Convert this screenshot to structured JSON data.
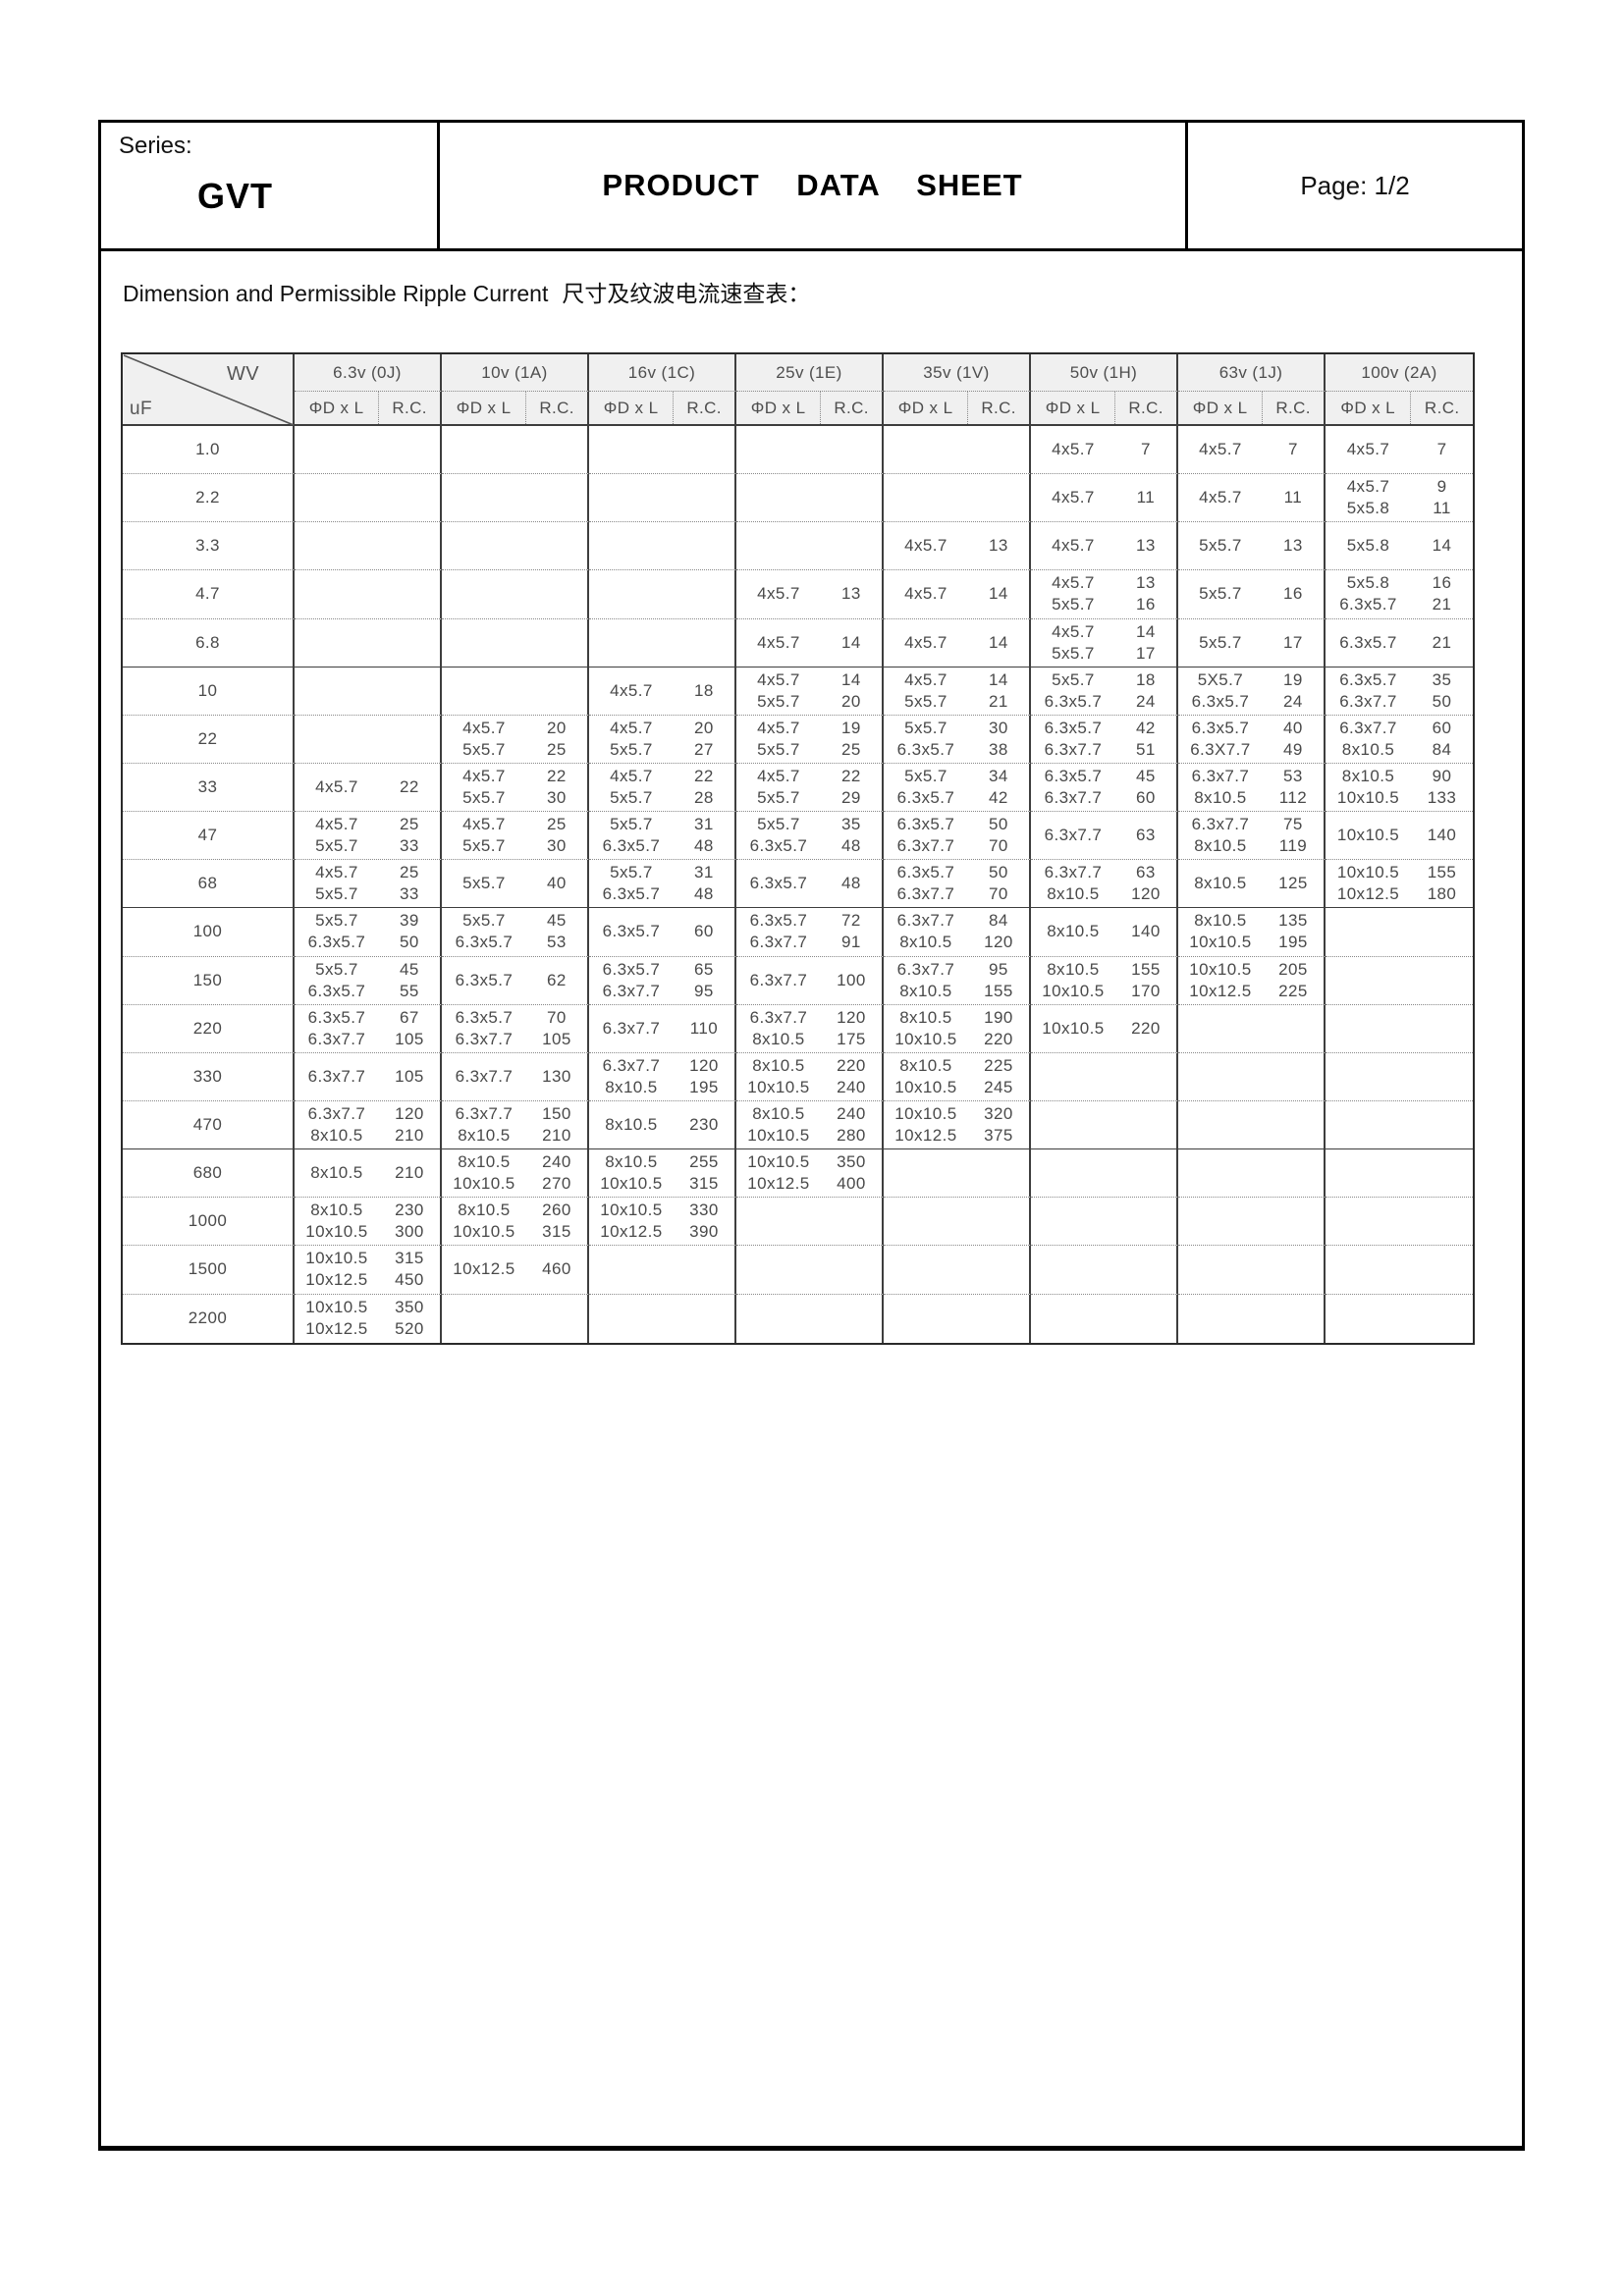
{
  "header": {
    "series_label": "Series:",
    "series_value": "GVT",
    "sheet_title": "PRODUCT DATA SHEET",
    "page_label": "Page: 1/2"
  },
  "section": {
    "title_en": "Dimension and Permissible Ripple Current",
    "title_zh": "尺寸及纹波电流速查表："
  },
  "colors": {
    "header_bg": "#f0f0f0",
    "grid_line": "#3e3e3e",
    "text": "#4a4a4a"
  },
  "table": {
    "corner": {
      "wv": "WV",
      "uf": "uF"
    },
    "sub": {
      "dim": "ΦD x L",
      "rc": "R.C."
    },
    "voltages": [
      "6.3v (0J)",
      "10v (1A)",
      "16v (1C)",
      "25v (1E)",
      "35v (1V)",
      "50v (1H)",
      "63v (1J)",
      "100v (2A)"
    ],
    "rows": [
      {
        "uf": "1.0",
        "cells": [
          [],
          [],
          [],
          [],
          [],
          [
            [
              "4x5.7",
              "7"
            ]
          ],
          [
            [
              "4x5.7",
              "7"
            ]
          ],
          [
            [
              "4x5.7",
              "7"
            ]
          ]
        ]
      },
      {
        "uf": "2.2",
        "cells": [
          [],
          [],
          [],
          [],
          [],
          [
            [
              "4x5.7",
              "11"
            ]
          ],
          [
            [
              "4x5.7",
              "11"
            ]
          ],
          [
            [
              "4x5.7",
              "9"
            ],
            [
              "5x5.8",
              "11"
            ]
          ]
        ]
      },
      {
        "uf": "3.3",
        "cells": [
          [],
          [],
          [],
          [],
          [
            [
              "4x5.7",
              "13"
            ]
          ],
          [
            [
              "4x5.7",
              "13"
            ]
          ],
          [
            [
              "5x5.7",
              "13"
            ]
          ],
          [
            [
              "5x5.8",
              "14"
            ]
          ]
        ]
      },
      {
        "uf": "4.7",
        "cells": [
          [],
          [],
          [],
          [
            [
              "4x5.7",
              "13"
            ]
          ],
          [
            [
              "4x5.7",
              "14"
            ]
          ],
          [
            [
              "4x5.7",
              "13"
            ],
            [
              "5x5.7",
              "16"
            ]
          ],
          [
            [
              "5x5.7",
              "16"
            ]
          ],
          [
            [
              "5x5.8",
              "16"
            ],
            [
              "6.3x5.7",
              "21"
            ]
          ]
        ]
      },
      {
        "uf": "6.8",
        "cells": [
          [],
          [],
          [],
          [
            [
              "4x5.7",
              "14"
            ]
          ],
          [
            [
              "4x5.7",
              "14"
            ]
          ],
          [
            [
              "4x5.7",
              "14"
            ],
            [
              "5x5.7",
              "17"
            ]
          ],
          [
            [
              "5x5.7",
              "17"
            ]
          ],
          [
            [
              "6.3x5.7",
              "21"
            ]
          ]
        ]
      },
      {
        "uf": "10",
        "cells": [
          [],
          [],
          [
            [
              "4x5.7",
              "18"
            ]
          ],
          [
            [
              "4x5.7",
              "14"
            ],
            [
              "5x5.7",
              "20"
            ]
          ],
          [
            [
              "4x5.7",
              "14"
            ],
            [
              "5x5.7",
              "21"
            ]
          ],
          [
            [
              "5x5.7",
              "18"
            ],
            [
              "6.3x5.7",
              "24"
            ]
          ],
          [
            [
              "5X5.7",
              "19"
            ],
            [
              "6.3x5.7",
              "24"
            ]
          ],
          [
            [
              "6.3x5.7",
              "35"
            ],
            [
              "6.3x7.7",
              "50"
            ]
          ]
        ]
      },
      {
        "uf": "22",
        "cells": [
          [],
          [
            [
              "4x5.7",
              "20"
            ],
            [
              "5x5.7",
              "25"
            ]
          ],
          [
            [
              "4x5.7",
              "20"
            ],
            [
              "5x5.7",
              "27"
            ]
          ],
          [
            [
              "4x5.7",
              "19"
            ],
            [
              "5x5.7",
              "25"
            ]
          ],
          [
            [
              "5x5.7",
              "30"
            ],
            [
              "6.3x5.7",
              "38"
            ]
          ],
          [
            [
              "6.3x5.7",
              "42"
            ],
            [
              "6.3x7.7",
              "51"
            ]
          ],
          [
            [
              "6.3x5.7",
              "40"
            ],
            [
              "6.3X7.7",
              "49"
            ]
          ],
          [
            [
              "6.3x7.7",
              "60"
            ],
            [
              "8x10.5",
              "84"
            ]
          ]
        ]
      },
      {
        "uf": "33",
        "cells": [
          [
            [
              "4x5.7",
              "22"
            ]
          ],
          [
            [
              "4x5.7",
              "22"
            ],
            [
              "5x5.7",
              "30"
            ]
          ],
          [
            [
              "4x5.7",
              "22"
            ],
            [
              "5x5.7",
              "28"
            ]
          ],
          [
            [
              "4x5.7",
              "22"
            ],
            [
              "5x5.7",
              "29"
            ]
          ],
          [
            [
              "5x5.7",
              "34"
            ],
            [
              "6.3x5.7",
              "42"
            ]
          ],
          [
            [
              "6.3x5.7",
              "45"
            ],
            [
              "6.3x7.7",
              "60"
            ]
          ],
          [
            [
              "6.3x7.7",
              "53"
            ],
            [
              "8x10.5",
              "112"
            ]
          ],
          [
            [
              "8x10.5",
              "90"
            ],
            [
              "10x10.5",
              "133"
            ]
          ]
        ]
      },
      {
        "uf": "47",
        "cells": [
          [
            [
              "4x5.7",
              "25"
            ],
            [
              "5x5.7",
              "33"
            ]
          ],
          [
            [
              "4x5.7",
              "25"
            ],
            [
              "5x5.7",
              "30"
            ]
          ],
          [
            [
              "5x5.7",
              "31"
            ],
            [
              "6.3x5.7",
              "48"
            ]
          ],
          [
            [
              "5x5.7",
              "35"
            ],
            [
              "6.3x5.7",
              "48"
            ]
          ],
          [
            [
              "6.3x5.7",
              "50"
            ],
            [
              "6.3x7.7",
              "70"
            ]
          ],
          [
            [
              "6.3x7.7",
              "63"
            ]
          ],
          [
            [
              "6.3x7.7",
              "75"
            ],
            [
              "8x10.5",
              "119"
            ]
          ],
          [
            [
              "10x10.5",
              "140"
            ]
          ]
        ]
      },
      {
        "uf": "68",
        "cells": [
          [
            [
              "4x5.7",
              "25"
            ],
            [
              "5x5.7",
              "33"
            ]
          ],
          [
            [
              "5x5.7",
              "40"
            ]
          ],
          [
            [
              "5x5.7",
              "31"
            ],
            [
              "6.3x5.7",
              "48"
            ]
          ],
          [
            [
              "6.3x5.7",
              "48"
            ]
          ],
          [
            [
              "6.3x5.7",
              "50"
            ],
            [
              "6.3x7.7",
              "70"
            ]
          ],
          [
            [
              "6.3x7.7",
              "63"
            ],
            [
              "8x10.5",
              "120"
            ]
          ],
          [
            [
              "8x10.5",
              "125"
            ]
          ],
          [
            [
              "10x10.5",
              "155"
            ],
            [
              "10x12.5",
              "180"
            ]
          ]
        ]
      },
      {
        "uf": "100",
        "cells": [
          [
            [
              "5x5.7",
              "39"
            ],
            [
              "6.3x5.7",
              "50"
            ]
          ],
          [
            [
              "5x5.7",
              "45"
            ],
            [
              "6.3x5.7",
              "53"
            ]
          ],
          [
            [
              "6.3x5.7",
              "60"
            ]
          ],
          [
            [
              "6.3x5.7",
              "72"
            ],
            [
              "6.3x7.7",
              "91"
            ]
          ],
          [
            [
              "6.3x7.7",
              "84"
            ],
            [
              "8x10.5",
              "120"
            ]
          ],
          [
            [
              "8x10.5",
              "140"
            ]
          ],
          [
            [
              "8x10.5",
              "135"
            ],
            [
              "10x10.5",
              "195"
            ]
          ],
          []
        ]
      },
      {
        "uf": "150",
        "cells": [
          [
            [
              "5x5.7",
              "45"
            ],
            [
              "6.3x5.7",
              "55"
            ]
          ],
          [
            [
              "6.3x5.7",
              "62"
            ]
          ],
          [
            [
              "6.3x5.7",
              "65"
            ],
            [
              "6.3x7.7",
              "95"
            ]
          ],
          [
            [
              "6.3x7.7",
              "100"
            ]
          ],
          [
            [
              "6.3x7.7",
              "95"
            ],
            [
              "8x10.5",
              "155"
            ]
          ],
          [
            [
              "8x10.5",
              "155"
            ],
            [
              "10x10.5",
              "170"
            ]
          ],
          [
            [
              "10x10.5",
              "205"
            ],
            [
              "10x12.5",
              "225"
            ]
          ],
          []
        ]
      },
      {
        "uf": "220",
        "cells": [
          [
            [
              "6.3x5.7",
              "67"
            ],
            [
              "6.3x7.7",
              "105"
            ]
          ],
          [
            [
              "6.3x5.7",
              "70"
            ],
            [
              "6.3x7.7",
              "105"
            ]
          ],
          [
            [
              "6.3x7.7",
              "110"
            ]
          ],
          [
            [
              "6.3x7.7",
              "120"
            ],
            [
              "8x10.5",
              "175"
            ]
          ],
          [
            [
              "8x10.5",
              "190"
            ],
            [
              "10x10.5",
              "220"
            ]
          ],
          [
            [
              "10x10.5",
              "220"
            ]
          ],
          [],
          []
        ]
      },
      {
        "uf": "330",
        "cells": [
          [
            [
              "6.3x7.7",
              "105"
            ]
          ],
          [
            [
              "6.3x7.7",
              "130"
            ]
          ],
          [
            [
              "6.3x7.7",
              "120"
            ],
            [
              "8x10.5",
              "195"
            ]
          ],
          [
            [
              "8x10.5",
              "220"
            ],
            [
              "10x10.5",
              "240"
            ]
          ],
          [
            [
              "8x10.5",
              "225"
            ],
            [
              "10x10.5",
              "245"
            ]
          ],
          [],
          [],
          []
        ]
      },
      {
        "uf": "470",
        "cells": [
          [
            [
              "6.3x7.7",
              "120"
            ],
            [
              "8x10.5",
              "210"
            ]
          ],
          [
            [
              "6.3x7.7",
              "150"
            ],
            [
              "8x10.5",
              "210"
            ]
          ],
          [
            [
              "8x10.5",
              "230"
            ]
          ],
          [
            [
              "8x10.5",
              "240"
            ],
            [
              "10x10.5",
              "280"
            ]
          ],
          [
            [
              "10x10.5",
              "320"
            ],
            [
              "10x12.5",
              "375"
            ]
          ],
          [],
          [],
          []
        ]
      },
      {
        "uf": "680",
        "cells": [
          [
            [
              "8x10.5",
              "210"
            ]
          ],
          [
            [
              "8x10.5",
              "240"
            ],
            [
              "10x10.5",
              "270"
            ]
          ],
          [
            [
              "8x10.5",
              "255"
            ],
            [
              "10x10.5",
              "315"
            ]
          ],
          [
            [
              "10x10.5",
              "350"
            ],
            [
              "10x12.5",
              "400"
            ]
          ],
          [],
          [],
          [],
          []
        ]
      },
      {
        "uf": "1000",
        "cells": [
          [
            [
              "8x10.5",
              "230"
            ],
            [
              "10x10.5",
              "300"
            ]
          ],
          [
            [
              "8x10.5",
              "260"
            ],
            [
              "10x10.5",
              "315"
            ]
          ],
          [
            [
              "10x10.5",
              "330"
            ],
            [
              "10x12.5",
              "390"
            ]
          ],
          [],
          [],
          [],
          [],
          []
        ]
      },
      {
        "uf": "1500",
        "cells": [
          [
            [
              "10x10.5",
              "315"
            ],
            [
              "10x12.5",
              "450"
            ]
          ],
          [
            [
              "10x12.5",
              "460"
            ]
          ],
          [],
          [],
          [],
          [],
          [],
          []
        ]
      },
      {
        "uf": "2200",
        "cells": [
          [
            [
              "10x10.5",
              "350"
            ],
            [
              "10x12.5",
              "520"
            ]
          ],
          [],
          [],
          [],
          [],
          [],
          [],
          []
        ]
      }
    ]
  }
}
